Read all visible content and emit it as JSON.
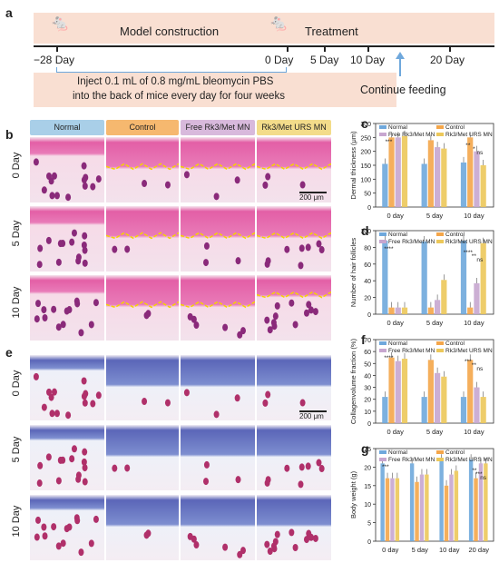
{
  "panels": {
    "a": "a",
    "b": "b",
    "c": "c",
    "d": "d",
    "e": "e",
    "f": "f",
    "g": "g"
  },
  "timeline": {
    "model": "Model construction",
    "treatment": "Treatment",
    "ticks": [
      "−28 Day",
      "0 Day",
      "5 Day",
      "10 Day",
      "20 Day"
    ],
    "inject_line1": "Inject 0.1 mL of 0.8 mg/mL bleomycin PBS",
    "inject_line2": "into the back of mice every day for four weeks",
    "continue": "Continue feeding"
  },
  "groups": [
    "Normal",
    "Control",
    "Free Rk3/Met MN",
    "Rk3/Met URS MN"
  ],
  "group_colors": [
    "#a9cfe8",
    "#f6b86f",
    "#d8b9dc",
    "#f3dc8a"
  ],
  "rows": [
    "0 Day",
    "5 Day",
    "10 Day"
  ],
  "scalebar": "200 μm",
  "legend": [
    "Normal",
    "Control",
    "Free Rk3/Met MN",
    "Rk3/Met URS MN"
  ],
  "series_colors": [
    "#6fa8dc",
    "#f4a64a",
    "#c7a6cf",
    "#ecc85a"
  ],
  "chart_data": [
    {
      "type": "bar",
      "panel": "c",
      "categories": [
        "0 day",
        "5 day",
        "10 day"
      ],
      "ylabel": "Dermal thickness (μm)",
      "ylim": [
        0,
        300
      ],
      "yticks": [
        0,
        50,
        100,
        150,
        200,
        250,
        300
      ],
      "series": [
        {
          "name": "Normal",
          "values": [
            155,
            155,
            160
          ]
        },
        {
          "name": "Control",
          "values": [
            250,
            240,
            250
          ]
        },
        {
          "name": "Free Rk3/Met MN",
          "values": [
            250,
            215,
            200
          ]
        },
        {
          "name": "Rk3/Met URS MN",
          "values": [
            255,
            210,
            150
          ]
        }
      ],
      "significance": [
        "***",
        "**",
        "*",
        "ns"
      ]
    },
    {
      "type": "bar",
      "panel": "d",
      "categories": [
        "0 day",
        "5 day",
        "10 day"
      ],
      "ylabel": "Number of hair follicles",
      "ylim": [
        0,
        100
      ],
      "yticks": [
        0,
        20,
        40,
        60,
        80,
        100
      ],
      "series": [
        {
          "name": "Normal",
          "values": [
            88,
            87,
            88
          ]
        },
        {
          "name": "Control",
          "values": [
            8,
            8,
            8
          ]
        },
        {
          "name": "Free Rk3/Met MN",
          "values": [
            8,
            17,
            37
          ]
        },
        {
          "name": "Rk3/Met URS MN",
          "values": [
            8,
            41,
            85
          ]
        }
      ],
      "significance": [
        "****",
        "****",
        "**",
        "ns"
      ]
    },
    {
      "type": "bar",
      "panel": "f",
      "categories": [
        "0 day",
        "5 day",
        "10 day"
      ],
      "ylabel": "Collagenvolume fraction (%)",
      "ylim": [
        0,
        70
      ],
      "yticks": [
        0,
        10,
        20,
        30,
        40,
        50,
        60,
        70
      ],
      "series": [
        {
          "name": "Normal",
          "values": [
            22,
            22,
            22
          ]
        },
        {
          "name": "Control",
          "values": [
            55,
            53,
            53
          ]
        },
        {
          "name": "Free Rk3/Met MN",
          "values": [
            52,
            42,
            30
          ]
        },
        {
          "name": "Rk3/Met URS MN",
          "values": [
            54,
            39,
            22
          ]
        }
      ],
      "significance": [
        "****",
        "***",
        "**",
        "ns"
      ]
    },
    {
      "type": "bar",
      "panel": "g",
      "categories": [
        "0 day",
        "5 day",
        "10 day",
        "20 day"
      ],
      "ylabel": "Body weight (g)",
      "ylim": [
        0,
        25
      ],
      "yticks": [
        0,
        5,
        10,
        15,
        20,
        25
      ],
      "series": [
        {
          "name": "Normal",
          "values": [
            21,
            21,
            22,
            22
          ]
        },
        {
          "name": "Control",
          "values": [
            17,
            16,
            15,
            17
          ]
        },
        {
          "name": "Free Rk3/Met MN",
          "values": [
            17,
            18,
            18,
            21
          ]
        },
        {
          "name": "Rk3/Met URS MN",
          "values": [
            17,
            18,
            19,
            21
          ]
        }
      ],
      "significance": [
        "***",
        "**",
        "***",
        "ns"
      ]
    }
  ]
}
